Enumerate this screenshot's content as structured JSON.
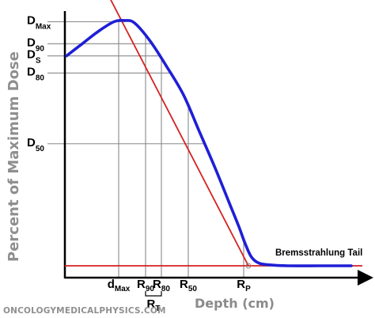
{
  "chart_data": {
    "type": "line",
    "title": "",
    "xlabel": "Depth (cm)",
    "ylabel": "Percent of Maximum Dose",
    "ylim": [
      0,
      100
    ],
    "grid": false,
    "series": [
      {
        "name": "",
        "color": "#1f1fd6",
        "x": [
          0,
          1,
          2,
          3,
          3.7,
          4.3,
          5.3,
          6.3,
          7.4,
          8.4,
          9.4,
          10.4,
          10.9,
          11.3,
          11.7,
          12.2,
          13,
          14,
          16,
          18
        ],
        "y": [
          86,
          91,
          96,
          100,
          100.5,
          99.5,
          92,
          82,
          70,
          55,
          40,
          24,
          16,
          9,
          3.5,
          1,
          0.3,
          0,
          0,
          0
        ]
      }
    ],
    "dose_labels": [
      {
        "main": "D",
        "sub": "Max",
        "value": 100
      },
      {
        "main": "D",
        "sub": "90",
        "value": 91
      },
      {
        "main": "D",
        "sub": "S",
        "value": 86
      },
      {
        "main": "D",
        "sub": "80",
        "value": 79
      },
      {
        "main": "D",
        "sub": "50",
        "value": 50
      }
    ],
    "depth_labels": [
      {
        "main": "d",
        "sub": "Max",
        "value": 3.3
      },
      {
        "main": "R",
        "sub": "90",
        "value": 5.0
      },
      {
        "main": "R",
        "sub": "80",
        "value": 6.0
      },
      {
        "main": "R",
        "sub": "50",
        "value": 7.7
      },
      {
        "main": "R",
        "sub": "P",
        "value": 11.2
      }
    ],
    "bracket_label": {
      "main": "R",
      "sub": "T"
    },
    "tangent_line": {
      "color": "#d62020",
      "from": [
        2.8,
        109
      ],
      "to": [
        11.5,
        0
      ]
    },
    "baseline": {
      "color": "#d62020",
      "value": 0
    },
    "reference_line_color": "#888888",
    "annotation": "Bremsstrahlung Tail",
    "footer": "ONCOLOGYMEDICALPHYSICS.COM"
  }
}
